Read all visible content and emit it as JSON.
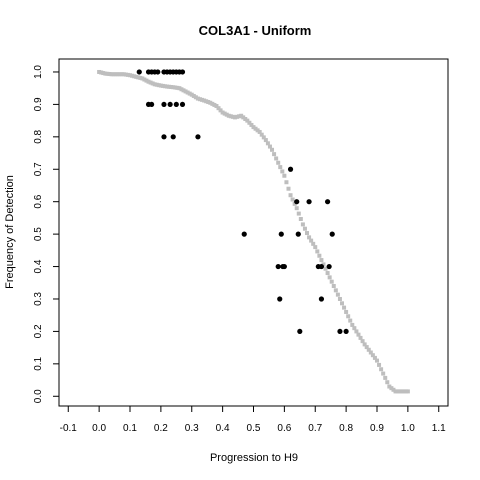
{
  "chart_data": {
    "type": "scatter",
    "title": "COL3A1 - Uniform",
    "xlabel": "Progression to H9",
    "ylabel": "Frequency of Detection",
    "xlim": [
      -0.13,
      1.13
    ],
    "ylim": [
      -0.03,
      1.04
    ],
    "xticks": [
      -0.1,
      0.0,
      0.1,
      0.2,
      0.3,
      0.4,
      0.5,
      0.6,
      0.7,
      0.8,
      0.9,
      1.0,
      1.1
    ],
    "xtick_labels": [
      "-0.1",
      "0.0",
      "0.1",
      "0.2",
      "0.3",
      "0.4",
      "0.5",
      "0.6",
      "0.7",
      "0.8",
      "0.9",
      "1.0",
      "1.1"
    ],
    "yticks": [
      0.0,
      0.1,
      0.2,
      0.3,
      0.4,
      0.5,
      0.6,
      0.7,
      0.8,
      0.9,
      1.0
    ],
    "ytick_labels": [
      "0.0",
      "0.1",
      "0.2",
      "0.3",
      "0.4",
      "0.5",
      "0.6",
      "0.7",
      "0.8",
      "0.9",
      "1.0"
    ],
    "grid": false,
    "series": [
      {
        "color": "#bebebe",
        "marker": "square",
        "x": [
          0.0,
          0.02,
          0.04,
          0.06,
          0.08,
          0.1,
          0.12,
          0.14,
          0.16,
          0.18,
          0.2,
          0.22,
          0.24,
          0.26,
          0.28,
          0.3,
          0.32,
          0.34,
          0.36,
          0.38,
          0.4,
          0.42,
          0.44,
          0.46,
          0.48,
          0.5,
          0.52,
          0.54,
          0.56,
          0.58,
          0.6,
          0.62,
          0.64,
          0.66,
          0.68,
          0.7,
          0.72,
          0.74,
          0.76,
          0.78,
          0.8,
          0.82,
          0.84,
          0.86,
          0.88,
          0.9,
          0.92,
          0.94,
          0.96,
          0.98,
          1.0
        ],
        "y": [
          1.0,
          0.995,
          0.993,
          0.993,
          0.993,
          0.99,
          0.985,
          0.98,
          0.97,
          0.962,
          0.958,
          0.955,
          0.953,
          0.95,
          0.94,
          0.93,
          0.918,
          0.912,
          0.905,
          0.895,
          0.875,
          0.865,
          0.86,
          0.865,
          0.85,
          0.83,
          0.815,
          0.79,
          0.76,
          0.72,
          0.68,
          0.62,
          0.58,
          0.53,
          0.49,
          0.46,
          0.42,
          0.38,
          0.34,
          0.3,
          0.26,
          0.22,
          0.19,
          0.16,
          0.135,
          0.11,
          0.07,
          0.03,
          0.015,
          0.015,
          0.015
        ]
      },
      {
        "color": "#000000",
        "marker": "circle",
        "x": [
          0.13,
          0.16,
          0.17,
          0.18,
          0.19,
          0.21,
          0.22,
          0.23,
          0.24,
          0.25,
          0.26,
          0.27,
          0.16,
          0.17,
          0.21,
          0.23,
          0.25,
          0.27,
          0.21,
          0.24,
          0.32,
          0.62,
          0.64,
          0.68,
          0.74,
          0.47,
          0.59,
          0.645,
          0.755,
          0.58,
          0.595,
          0.6,
          0.71,
          0.72,
          0.745,
          0.585,
          0.72,
          0.65,
          0.78,
          0.8
        ],
        "y": [
          1.0,
          1.0,
          1.0,
          1.0,
          1.0,
          1.0,
          1.0,
          1.0,
          1.0,
          1.0,
          1.0,
          1.0,
          0.9,
          0.9,
          0.9,
          0.9,
          0.9,
          0.9,
          0.8,
          0.8,
          0.8,
          0.7,
          0.6,
          0.6,
          0.6,
          0.5,
          0.5,
          0.5,
          0.5,
          0.4,
          0.4,
          0.4,
          0.4,
          0.4,
          0.4,
          0.3,
          0.3,
          0.2,
          0.2,
          0.2
        ]
      }
    ]
  }
}
